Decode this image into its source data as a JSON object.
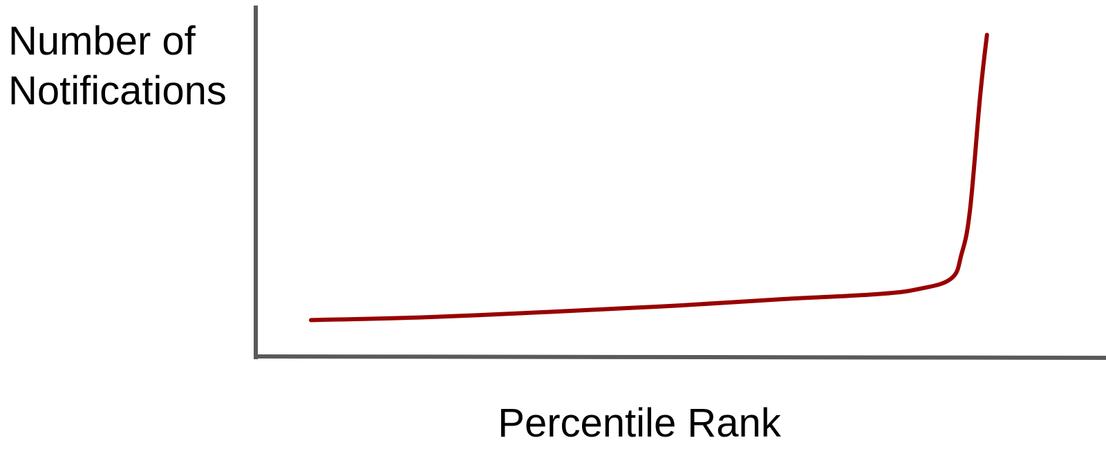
{
  "chart_data": {
    "type": "line",
    "title": "",
    "xlabel": "Percentile Rank",
    "ylabel_lines": [
      "Number of",
      "Notifications"
    ],
    "x_tick_labels": [],
    "y_tick_labels": [],
    "grid": false,
    "legend": "none",
    "xlim": [
      0,
      100
    ],
    "ylim": [
      0,
      100
    ],
    "series": [
      {
        "color": "#990000",
        "points": [
          {
            "x": 6.5,
            "y": 10.4
          },
          {
            "x": 20,
            "y": 11.2
          },
          {
            "x": 35,
            "y": 12.8
          },
          {
            "x": 50,
            "y": 14.6
          },
          {
            "x": 62,
            "y": 16.4
          },
          {
            "x": 73,
            "y": 17.8
          },
          {
            "x": 78,
            "y": 19.3
          },
          {
            "x": 81.8,
            "y": 22.3
          },
          {
            "x": 83,
            "y": 29.2
          },
          {
            "x": 84,
            "y": 41.8
          },
          {
            "x": 85.2,
            "y": 74.6
          },
          {
            "x": 86,
            "y": 92.0
          }
        ]
      }
    ],
    "axis_color": "#5a5a5a"
  }
}
